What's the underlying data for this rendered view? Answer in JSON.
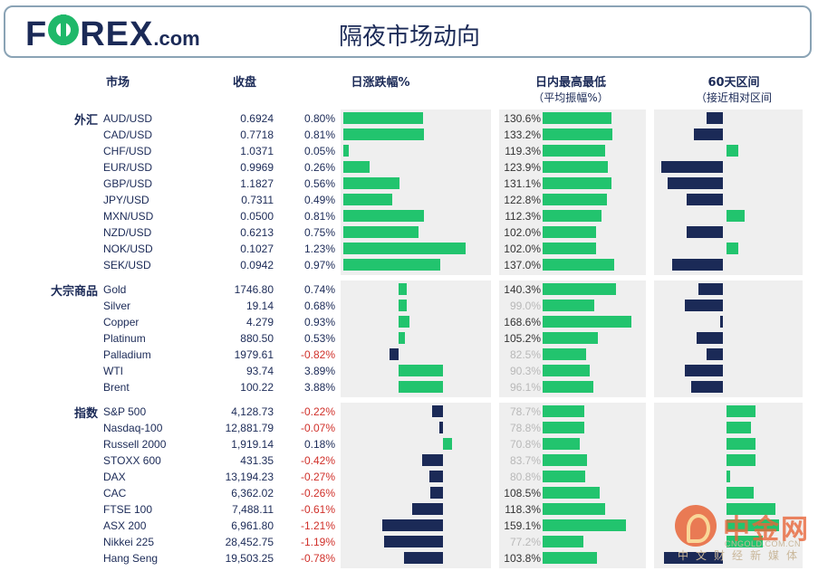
{
  "header": {
    "logo_text": "F",
    "logo_text2": "REX",
    "logo_suffix": ".com",
    "title": "隔夜市场动向"
  },
  "columns": {
    "market": "市场",
    "close": "收盘",
    "daily": "日涨跌幅%",
    "intraday": "日内最高最低",
    "intraday_sub": "（平均振幅%）",
    "range60": "60天区间",
    "range60_sub": "（接近相对区间"
  },
  "colors": {
    "up": "#22c46e",
    "down": "#1b2a57",
    "neg_text": "#d0302a"
  },
  "sections": [
    {
      "label": "外汇",
      "rows": [
        {
          "name": "AUD/USD",
          "close": "0.6924",
          "pct": "0.80%",
          "chg": 0.8,
          "range": "130.6%",
          "rv": 130.6,
          "pos": -0.25
        },
        {
          "name": "CAD/USD",
          "close": "0.7718",
          "pct": "0.81%",
          "chg": 0.81,
          "range": "133.2%",
          "rv": 133.2,
          "pos": -0.45
        },
        {
          "name": "CHF/USD",
          "close": "1.0371",
          "pct": "0.05%",
          "chg": 0.05,
          "range": "119.3%",
          "rv": 119.3,
          "pos": 0.18
        },
        {
          "name": "EUR/USD",
          "close": "0.9969",
          "pct": "0.26%",
          "chg": 0.26,
          "range": "123.9%",
          "rv": 123.9,
          "pos": -0.95
        },
        {
          "name": "GBP/USD",
          "close": "1.1827",
          "pct": "0.56%",
          "chg": 0.56,
          "range": "131.1%",
          "rv": 131.1,
          "pos": -0.85
        },
        {
          "name": "JPY/USD",
          "close": "0.7311",
          "pct": "0.49%",
          "chg": 0.49,
          "range": "122.8%",
          "rv": 122.8,
          "pos": -0.55
        },
        {
          "name": "MXN/USD",
          "close": "0.0500",
          "pct": "0.81%",
          "chg": 0.81,
          "range": "112.3%",
          "rv": 112.3,
          "pos": 0.28
        },
        {
          "name": "NZD/USD",
          "close": "0.6213",
          "pct": "0.75%",
          "chg": 0.75,
          "range": "102.0%",
          "rv": 102.0,
          "pos": -0.55
        },
        {
          "name": "NOK/USD",
          "close": "0.1027",
          "pct": "1.23%",
          "chg": 1.23,
          "range": "102.0%",
          "rv": 102.0,
          "pos": 0.18
        },
        {
          "name": "SEK/USD",
          "close": "0.0942",
          "pct": "0.97%",
          "chg": 0.97,
          "range": "137.0%",
          "rv": 137.0,
          "pos": -0.78
        }
      ]
    },
    {
      "label": "大宗商品",
      "rows": [
        {
          "name": "Gold",
          "close": "1746.80",
          "pct": "0.74%",
          "chg": 0.74,
          "range": "140.3%",
          "rv": 140.3,
          "pos": -0.38
        },
        {
          "name": "Silver",
          "close": "19.14",
          "pct": "0.68%",
          "chg": 0.68,
          "range": "99.0%",
          "rv": 99.0,
          "pos": -0.58
        },
        {
          "name": "Copper",
          "close": "4.279",
          "pct": "0.93%",
          "chg": 0.93,
          "range": "168.6%",
          "rv": 168.6,
          "pos": -0.02
        },
        {
          "name": "Platinum",
          "close": "880.50",
          "pct": "0.53%",
          "chg": 0.53,
          "range": "105.2%",
          "rv": 105.2,
          "pos": -0.4
        },
        {
          "name": "Palladium",
          "close": "1979.61",
          "pct": "-0.82%",
          "chg": -0.82,
          "range": "82.5%",
          "rv": 82.5,
          "pos": -0.25
        },
        {
          "name": "WTI",
          "close": "93.74",
          "pct": "3.89%",
          "chg": 3.89,
          "range": "90.3%",
          "rv": 90.3,
          "pos": -0.58
        },
        {
          "name": "Brent",
          "close": "100.22",
          "pct": "3.88%",
          "chg": 3.88,
          "range": "96.1%",
          "rv": 96.1,
          "pos": -0.48
        }
      ]
    },
    {
      "label": "指数",
      "rows": [
        {
          "name": "S&P 500",
          "close": "4,128.73",
          "pct": "-0.22%",
          "chg": -0.22,
          "range": "78.7%",
          "rv": 78.7,
          "pos": 0.45
        },
        {
          "name": "Nasdaq-100",
          "close": "12,881.79",
          "pct": "-0.07%",
          "chg": -0.07,
          "range": "78.8%",
          "rv": 78.8,
          "pos": 0.38
        },
        {
          "name": "Russell 2000",
          "close": "1,919.14",
          "pct": "0.18%",
          "chg": 0.18,
          "range": "70.8%",
          "rv": 70.8,
          "pos": 0.45
        },
        {
          "name": "STOXX 600",
          "close": "431.35",
          "pct": "-0.42%",
          "chg": -0.42,
          "range": "83.7%",
          "rv": 83.7,
          "pos": 0.45
        },
        {
          "name": "DAX",
          "close": "13,194.23",
          "pct": "-0.27%",
          "chg": -0.27,
          "range": "80.8%",
          "rv": 80.8,
          "pos": 0.06
        },
        {
          "name": "CAC",
          "close": "6,362.02",
          "pct": "-0.26%",
          "chg": -0.26,
          "range": "108.5%",
          "rv": 108.5,
          "pos": 0.42
        },
        {
          "name": "FTSE 100",
          "close": "7,488.11",
          "pct": "-0.61%",
          "chg": -0.61,
          "range": "118.3%",
          "rv": 118.3,
          "pos": 0.75
        },
        {
          "name": "ASX 200",
          "close": "6,961.80",
          "pct": "-1.21%",
          "chg": -1.21,
          "range": "159.1%",
          "rv": 159.1,
          "pos": 0.8
        },
        {
          "name": "Nikkei 225",
          "close": "28,452.75",
          "pct": "-1.19%",
          "chg": -1.19,
          "range": "77.2%",
          "rv": 77.2,
          "pos": 0.55
        },
        {
          "name": "Hang Seng",
          "close": "19,503.25",
          "pct": "-0.78%",
          "chg": -0.78,
          "range": "103.8%",
          "rv": 103.8,
          "pos": -0.9
        }
      ]
    }
  ],
  "watermark": {
    "text": "中金网",
    "url": "CNGOLD.COM.CN",
    "sub": "中文财经新媒体"
  }
}
